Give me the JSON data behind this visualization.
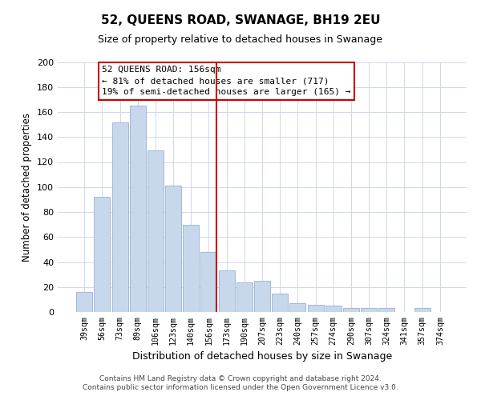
{
  "title": "52, QUEENS ROAD, SWANAGE, BH19 2EU",
  "subtitle": "Size of property relative to detached houses in Swanage",
  "xlabel": "Distribution of detached houses by size in Swanage",
  "ylabel": "Number of detached properties",
  "bar_labels": [
    "39sqm",
    "56sqm",
    "73sqm",
    "89sqm",
    "106sqm",
    "123sqm",
    "140sqm",
    "156sqm",
    "173sqm",
    "190sqm",
    "207sqm",
    "223sqm",
    "240sqm",
    "257sqm",
    "274sqm",
    "290sqm",
    "307sqm",
    "324sqm",
    "341sqm",
    "357sqm",
    "374sqm"
  ],
  "bar_values": [
    16,
    92,
    152,
    165,
    129,
    101,
    70,
    48,
    33,
    24,
    25,
    15,
    7,
    6,
    5,
    3,
    3,
    3,
    0,
    3,
    0
  ],
  "bar_color": "#c8d8ec",
  "bar_edge_color": "#a0b8d8",
  "vline_color": "#cc0000",
  "annotation_title": "52 QUEENS ROAD: 156sqm",
  "annotation_line1": "← 81% of detached houses are smaller (717)",
  "annotation_line2": "19% of semi-detached houses are larger (165) →",
  "annotation_box_color": "#ffffff",
  "annotation_box_edge": "#cc0000",
  "ylim": [
    0,
    200
  ],
  "yticks": [
    0,
    20,
    40,
    60,
    80,
    100,
    120,
    140,
    160,
    180,
    200
  ],
  "footer1": "Contains HM Land Registry data © Crown copyright and database right 2024.",
  "footer2": "Contains public sector information licensed under the Open Government Licence v3.0.",
  "background_color": "#ffffff",
  "grid_color": "#d0d8e8"
}
